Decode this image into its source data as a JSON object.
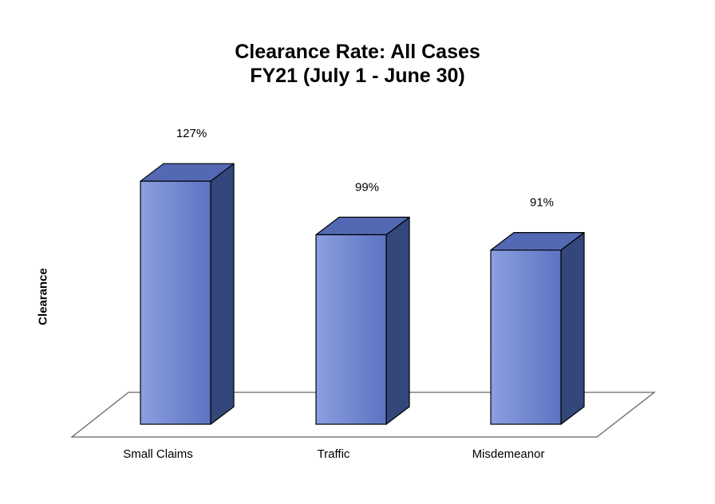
{
  "chart_data": {
    "type": "bar",
    "style": "3d",
    "title": [
      "Clearance Rate: All Cases",
      "FY21 (July 1 - June 30)"
    ],
    "ylabel": "Clearance",
    "xlabel": "",
    "categories": [
      "Small Claims",
      "Traffic",
      "Misdemeanor"
    ],
    "values": [
      127,
      99,
      91
    ],
    "data_labels": [
      "127%",
      "99%",
      "91%"
    ],
    "value_unit": "%",
    "grid": false,
    "legend": "none",
    "colors": {
      "bar_front_light": "#8b9fe0",
      "bar_front_dark": "#5d73c2",
      "bar_side": "#34477a",
      "bar_top": "#5369b4",
      "floor": "#ffffff",
      "outline": "#000000"
    }
  }
}
